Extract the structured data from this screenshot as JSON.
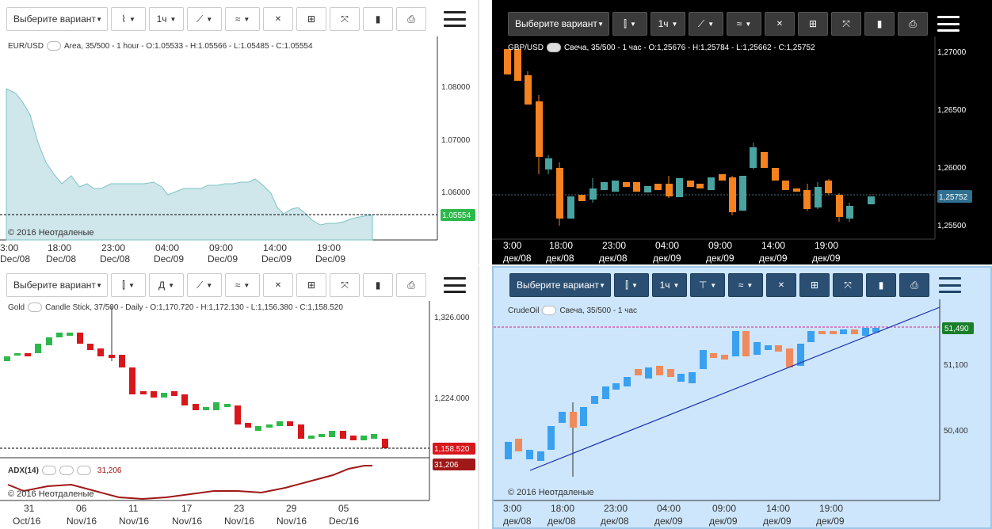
{
  "panels": [
    {
      "id": "p1",
      "symbol": "EUR/USD",
      "info": "Area, 35/500 - 1 hour - O:1.05533 - H:1.05566 - L:1.05485 - C:1.05554",
      "select": "Выберите вариант",
      "interval": "1ч",
      "copyright": "© 2016 Неотдаленые",
      "price_tag": "1.05554",
      "y_ticks": [
        "1.08000",
        "1.07000",
        "1.06000"
      ],
      "x_ticks": [
        [
          "3:00",
          "Dec/08"
        ],
        [
          "18:00",
          "Dec/08"
        ],
        [
          "23:00",
          "Dec/08"
        ],
        [
          "04:00",
          "Dec/09"
        ],
        [
          "09:00",
          "Dec/09"
        ],
        [
          "14:00",
          "Dec/09"
        ],
        [
          "19:00",
          "Dec/09"
        ]
      ]
    },
    {
      "id": "p2",
      "symbol": "GBP/USD",
      "info": "Свеча, 35/500 - 1 час - O:1,25676 - H:1,25784 - L:1,25662 - C:1,25752",
      "select": "Выберите вариант",
      "interval": "1ч",
      "price_tag": "1,25752",
      "y_ticks": [
        "1,27000",
        "1,26500",
        "1,26000",
        "1,25500"
      ],
      "x_ticks": [
        [
          "3:00",
          "дек/08"
        ],
        [
          "18:00",
          "дек/08"
        ],
        [
          "23:00",
          "дек/08"
        ],
        [
          "04:00",
          "дек/09"
        ],
        [
          "09:00",
          "дек/09"
        ],
        [
          "14:00",
          "дек/09"
        ],
        [
          "19:00",
          "дек/09"
        ]
      ]
    },
    {
      "id": "p3",
      "symbol": "Gold",
      "info": "Candle Stick, 37/500 - Daily - O:1,170.720 - H:1,172.130 - L:1,156.380 - C:1,158.520",
      "select": "Выберите вариант",
      "interval": "Д",
      "copyright": "© 2016 Неотдаленые",
      "price_tag": "1,158.520",
      "adx_label": "ADX(14)",
      "adx_value": "31,206",
      "adx_tag": "31,206",
      "y_ticks": [
        "1,326.000",
        "1,224.000"
      ],
      "x_ticks": [
        [
          "31",
          "Oct/16"
        ],
        [
          "06",
          "Nov/16"
        ],
        [
          "11",
          "Nov/16"
        ],
        [
          "17",
          "Nov/16"
        ],
        [
          "23",
          "Nov/16"
        ],
        [
          "29",
          "Nov/16"
        ],
        [
          "05",
          "Dec/16"
        ]
      ]
    },
    {
      "id": "p4",
      "symbol": "CrudeOil",
      "info": "Свеча, 35/500 - 1 час",
      "select": "Выберите вариант",
      "interval": "1ч",
      "copyright": "© 2016 Неотдаленые",
      "price_tag": "51,490",
      "y_ticks": [
        "51,100",
        "50,400"
      ],
      "x_ticks": [
        [
          "3:00",
          "дек/08"
        ],
        [
          "18:00",
          "дек/08"
        ],
        [
          "23:00",
          "дек/08"
        ],
        [
          "04:00",
          "дек/09"
        ],
        [
          "09:00",
          "дек/09"
        ],
        [
          "14:00",
          "дек/09"
        ],
        [
          "19:00",
          "дек/09"
        ]
      ]
    }
  ],
  "toolbar_icons": [
    "chart-type-icon",
    "draw-line-icon",
    "indicator-icon",
    "clear-all-icon",
    "layout-grid-icon",
    "fullscreen-icon",
    "bars-icon",
    "print-icon",
    "menu-icon"
  ],
  "clear_label": "All",
  "colors": {
    "up_green": "#2db84b",
    "down_red": "#d9161a",
    "orange": "#f5821f",
    "teal": "#4aa3a0",
    "area": "#cfe6ea",
    "blue_candle": "#3aa0f0",
    "salmon": "#f08a5d"
  }
}
